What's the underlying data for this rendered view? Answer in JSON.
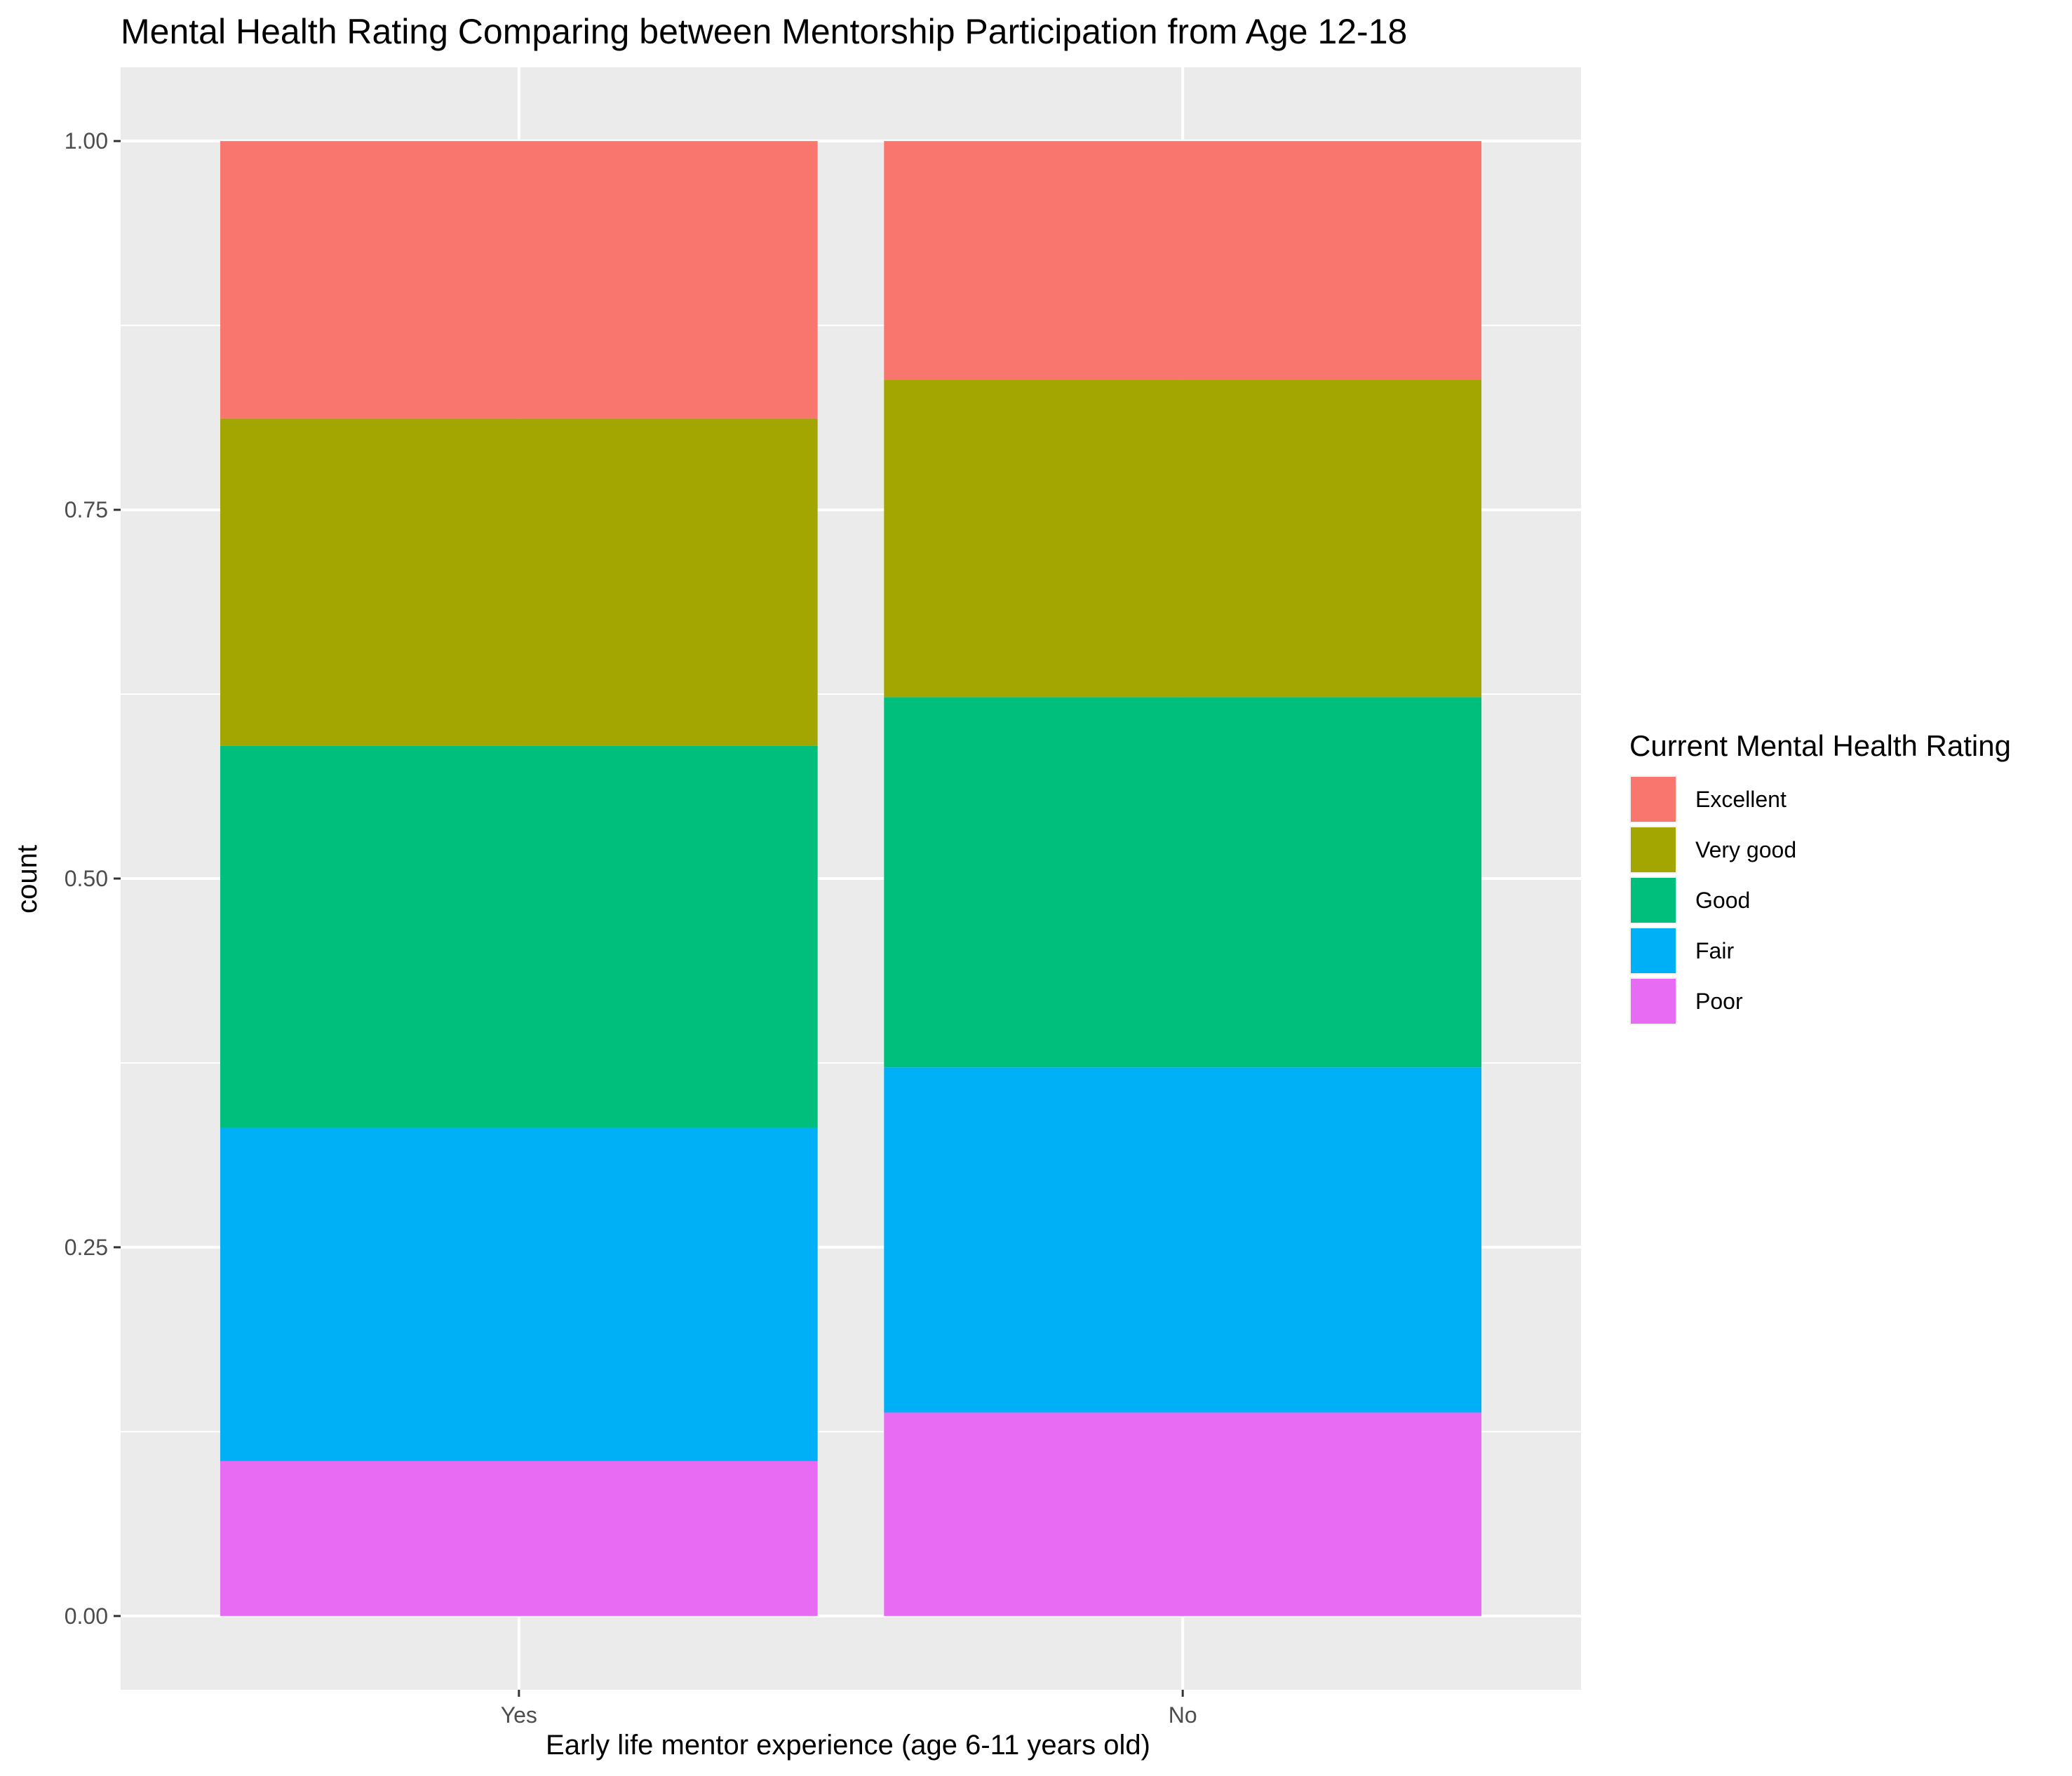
{
  "chart_data": {
    "type": "bar",
    "stacked": true,
    "title": "Mental Health Rating Comparing between Mentorship Participation from Age 12-18",
    "xlabel": "Early life mentor experience (age 6-11 years old)",
    "ylabel": "count",
    "categories": [
      "Yes",
      "No"
    ],
    "ylim": [
      -0.05,
      1.05
    ],
    "yticks": [
      0.0,
      0.25,
      0.5,
      0.75,
      1.0
    ],
    "ytick_labels": [
      "0.00",
      "0.25",
      "0.50",
      "0.75",
      "1.00"
    ],
    "grid": true,
    "legend": {
      "title": "Current Mental Health Rating",
      "position": "right"
    },
    "series": [
      {
        "name": "Excellent",
        "color": "#F8766D",
        "values": [
          0.188,
          0.162
        ]
      },
      {
        "name": "Very good",
        "color": "#A3A500",
        "values": [
          0.222,
          0.215
        ]
      },
      {
        "name": "Good",
        "color": "#00BF7D",
        "values": [
          0.259,
          0.251
        ]
      },
      {
        "name": "Fair",
        "color": "#00B0F6",
        "values": [
          0.226,
          0.234
        ]
      },
      {
        "name": "Poor",
        "color": "#E76BF3",
        "values": [
          0.105,
          0.138
        ]
      }
    ]
  }
}
